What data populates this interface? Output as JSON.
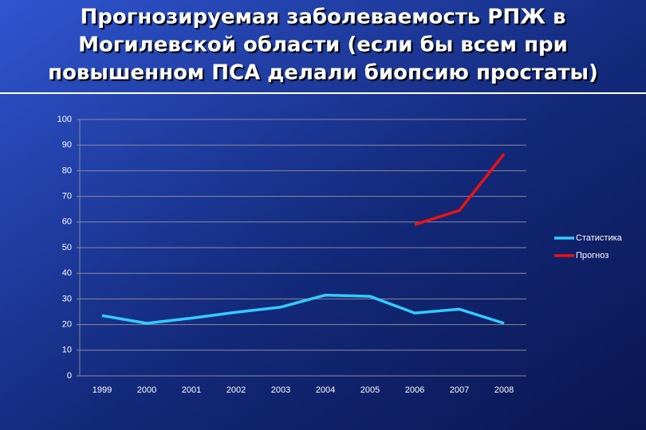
{
  "chart_data": {
    "type": "line",
    "title": [
      "Прогнозируемая заболеваемость РПЖ в",
      "Могилевской области  (если бы всем при",
      "повышенном ПСА делали биопсию простаты)"
    ],
    "categories": [
      "1999",
      "2000",
      "2001",
      "2002",
      "2003",
      "2004",
      "2005",
      "2006",
      "2007",
      "2008"
    ],
    "series": [
      {
        "name": "Статистика",
        "color": "#33ccff",
        "values": [
          23.5,
          20.5,
          22.5,
          24.8,
          26.8,
          31.5,
          31,
          24.5,
          26,
          20.5
        ]
      },
      {
        "name": "Прогноз",
        "color": "#ee1111",
        "values": [
          null,
          null,
          null,
          null,
          null,
          null,
          null,
          59,
          64.5,
          86.5
        ]
      }
    ],
    "ylim": [
      0,
      100
    ],
    "yticks": [
      0,
      10,
      20,
      30,
      40,
      50,
      60,
      70,
      80,
      90,
      100
    ],
    "grid": true,
    "legend": "right"
  }
}
